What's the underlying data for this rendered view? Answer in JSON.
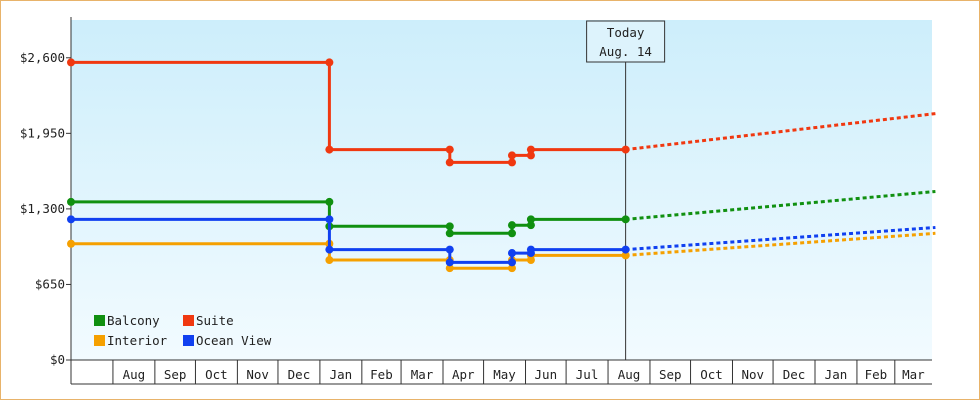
{
  "chart_data": {
    "type": "line",
    "title": "",
    "xlabel": "",
    "ylabel": "",
    "ylim": [
      0,
      2925
    ],
    "y_ticks": [
      0,
      650,
      1300,
      1950,
      2600
    ],
    "y_tick_labels": [
      "$0",
      "$650",
      "$1,300",
      "$1,950",
      "$2,600"
    ],
    "x_range": [
      "2011-07-01",
      "2012-04-01"
    ],
    "x_tick_labels": [
      {
        "label": "Aug",
        "date": "2011-08-01"
      },
      {
        "label": "Sep",
        "date": "2011-09-01"
      },
      {
        "label": "Oct",
        "date": "2011-10-01"
      },
      {
        "label": "Nov",
        "date": "2011-11-01"
      },
      {
        "label": "Dec",
        "date": "2011-12-01"
      },
      {
        "label": "Jan",
        "date": "2012-01-01"
      },
      {
        "label": "Feb",
        "date": "2012-02-01"
      },
      {
        "label": "Mar",
        "date": "2012-03-01"
      },
      {
        "label": "Apr",
        "date": "2012-04-01"
      },
      {
        "label": "May",
        "date": "2012-05-01"
      },
      {
        "label": "Jun",
        "date": "2012-06-01"
      },
      {
        "label": "Jul",
        "date": "2012-07-01"
      },
      {
        "label": "Aug",
        "date": "2012-08-01"
      },
      {
        "label": "Sep",
        "date": "2012-09-01"
      },
      {
        "label": "Oct",
        "date": "2012-10-01"
      },
      {
        "label": "Nov",
        "date": "2012-11-01"
      },
      {
        "label": "Dec",
        "date": "2012-12-01"
      },
      {
        "label": "Jan",
        "date": "2013-01-01"
      },
      {
        "label": "Feb",
        "date": "2013-02-01"
      },
      {
        "label": "Mar",
        "date": "2013-03-01"
      }
    ],
    "today_marker": {
      "line1": "Today",
      "line2": "Aug. 14",
      "date": "2012-08-14"
    },
    "grid": false,
    "legend_position": "bottom-left",
    "series": [
      {
        "name": "Balcony",
        "color": "#109010",
        "points": [
          {
            "date": "2011-07-01",
            "value": 1360
          },
          {
            "date": "2012-01-08",
            "value": 1360
          },
          {
            "date": "2012-01-08",
            "value": 1150
          },
          {
            "date": "2012-04-06",
            "value": 1150
          },
          {
            "date": "2012-04-06",
            "value": 1090
          },
          {
            "date": "2012-05-22",
            "value": 1090
          },
          {
            "date": "2012-05-22",
            "value": 1160
          },
          {
            "date": "2012-06-05",
            "value": 1160
          },
          {
            "date": "2012-06-05",
            "value": 1210
          },
          {
            "date": "2012-08-14",
            "value": 1210
          }
        ],
        "markers": [
          {
            "date": "2011-07-01",
            "value": 1360
          },
          {
            "date": "2012-01-08",
            "value": 1360
          },
          {
            "date": "2012-01-08",
            "value": 1150
          },
          {
            "date": "2012-04-06",
            "value": 1150
          },
          {
            "date": "2012-04-06",
            "value": 1090
          },
          {
            "date": "2012-05-22",
            "value": 1090
          },
          {
            "date": "2012-05-22",
            "value": 1160
          },
          {
            "date": "2012-06-05",
            "value": 1160
          },
          {
            "date": "2012-06-05",
            "value": 1210
          },
          {
            "date": "2012-08-14",
            "value": 1210
          }
        ],
        "forecast": [
          {
            "date": "2012-08-14",
            "value": 1210
          },
          {
            "date": "2013-03-31",
            "value": 1450
          }
        ]
      },
      {
        "name": "Suite",
        "color": "#f03810",
        "points": [
          {
            "date": "2011-07-01",
            "value": 2560
          },
          {
            "date": "2012-01-08",
            "value": 2560
          },
          {
            "date": "2012-01-08",
            "value": 1810
          },
          {
            "date": "2012-04-06",
            "value": 1810
          },
          {
            "date": "2012-04-06",
            "value": 1700
          },
          {
            "date": "2012-05-22",
            "value": 1700
          },
          {
            "date": "2012-05-22",
            "value": 1760
          },
          {
            "date": "2012-06-05",
            "value": 1760
          },
          {
            "date": "2012-06-05",
            "value": 1810
          },
          {
            "date": "2012-08-14",
            "value": 1810
          }
        ],
        "markers": [
          {
            "date": "2011-07-01",
            "value": 2560
          },
          {
            "date": "2012-01-08",
            "value": 2560
          },
          {
            "date": "2012-01-08",
            "value": 1810
          },
          {
            "date": "2012-04-06",
            "value": 1810
          },
          {
            "date": "2012-04-06",
            "value": 1700
          },
          {
            "date": "2012-05-22",
            "value": 1700
          },
          {
            "date": "2012-05-22",
            "value": 1760
          },
          {
            "date": "2012-06-05",
            "value": 1760
          },
          {
            "date": "2012-06-05",
            "value": 1810
          },
          {
            "date": "2012-08-14",
            "value": 1810
          }
        ],
        "forecast": [
          {
            "date": "2012-08-14",
            "value": 1810
          },
          {
            "date": "2013-03-31",
            "value": 2120
          }
        ]
      },
      {
        "name": "Interior",
        "color": "#f5a000",
        "points": [
          {
            "date": "2011-07-01",
            "value": 1000
          },
          {
            "date": "2012-01-08",
            "value": 1000
          },
          {
            "date": "2012-01-08",
            "value": 860
          },
          {
            "date": "2012-04-06",
            "value": 860
          },
          {
            "date": "2012-04-06",
            "value": 790
          },
          {
            "date": "2012-05-22",
            "value": 790
          },
          {
            "date": "2012-05-22",
            "value": 860
          },
          {
            "date": "2012-06-05",
            "value": 860
          },
          {
            "date": "2012-06-05",
            "value": 900
          },
          {
            "date": "2012-08-14",
            "value": 900
          }
        ],
        "markers": [
          {
            "date": "2011-07-01",
            "value": 1000
          },
          {
            "date": "2012-01-08",
            "value": 1000
          },
          {
            "date": "2012-01-08",
            "value": 860
          },
          {
            "date": "2012-04-06",
            "value": 860
          },
          {
            "date": "2012-04-06",
            "value": 790
          },
          {
            "date": "2012-05-22",
            "value": 790
          },
          {
            "date": "2012-05-22",
            "value": 860
          },
          {
            "date": "2012-06-05",
            "value": 860
          },
          {
            "date": "2012-06-05",
            "value": 900
          },
          {
            "date": "2012-08-14",
            "value": 900
          }
        ],
        "forecast": [
          {
            "date": "2012-08-14",
            "value": 900
          },
          {
            "date": "2013-03-31",
            "value": 1090
          }
        ]
      },
      {
        "name": "Ocean View",
        "color": "#1040f0",
        "points": [
          {
            "date": "2011-07-01",
            "value": 1210
          },
          {
            "date": "2012-01-08",
            "value": 1210
          },
          {
            "date": "2012-01-08",
            "value": 950
          },
          {
            "date": "2012-04-06",
            "value": 950
          },
          {
            "date": "2012-04-06",
            "value": 840
          },
          {
            "date": "2012-05-22",
            "value": 840
          },
          {
            "date": "2012-05-22",
            "value": 920
          },
          {
            "date": "2012-06-05",
            "value": 920
          },
          {
            "date": "2012-06-05",
            "value": 950
          },
          {
            "date": "2012-08-14",
            "value": 950
          }
        ],
        "markers": [
          {
            "date": "2011-07-01",
            "value": 1210
          },
          {
            "date": "2012-01-08",
            "value": 1210
          },
          {
            "date": "2012-01-08",
            "value": 950
          },
          {
            "date": "2012-04-06",
            "value": 950
          },
          {
            "date": "2012-04-06",
            "value": 840
          },
          {
            "date": "2012-05-22",
            "value": 840
          },
          {
            "date": "2012-05-22",
            "value": 920
          },
          {
            "date": "2012-06-05",
            "value": 920
          },
          {
            "date": "2012-06-05",
            "value": 950
          },
          {
            "date": "2012-08-14",
            "value": 950
          }
        ],
        "forecast": [
          {
            "date": "2012-08-14",
            "value": 950
          },
          {
            "date": "2013-03-31",
            "value": 1140
          }
        ]
      }
    ],
    "legend": [
      {
        "name": "Balcony",
        "color": "#109010"
      },
      {
        "name": "Suite",
        "color": "#f03810"
      },
      {
        "name": "Interior",
        "color": "#f5a000"
      },
      {
        "name": "Ocean View",
        "color": "#1040f0"
      }
    ]
  }
}
